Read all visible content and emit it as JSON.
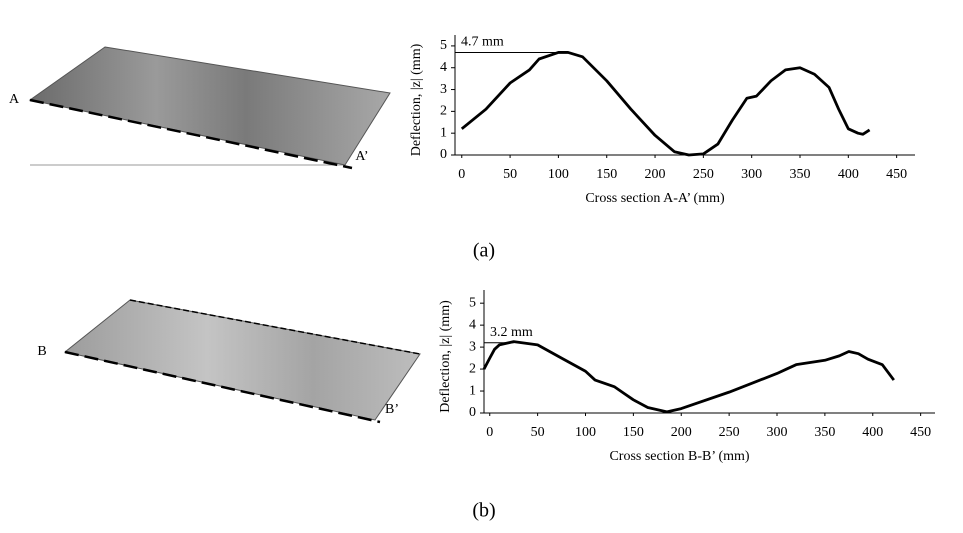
{
  "chart_data": [
    {
      "type": "line",
      "caption": "(a)",
      "plate_labels": [
        "A",
        "A’"
      ],
      "xlabel": "Cross section A-A’ (mm)",
      "ylabel": "Deflection, |z| (mm)",
      "x": [
        0,
        25,
        50,
        70,
        80,
        100,
        110,
        125,
        150,
        175,
        200,
        220,
        235,
        250,
        265,
        280,
        295,
        305,
        320,
        335,
        350,
        365,
        380,
        390,
        400,
        410,
        415,
        422
      ],
      "values": [
        1.2,
        2.1,
        3.3,
        3.9,
        4.4,
        4.7,
        4.7,
        4.5,
        3.4,
        2.1,
        0.9,
        0.15,
        0.0,
        0.05,
        0.5,
        1.6,
        2.6,
        2.7,
        3.4,
        3.9,
        4.0,
        3.7,
        3.1,
        2.1,
        1.2,
        1.0,
        0.95,
        1.15
      ],
      "color": "#000000",
      "annotation": {
        "text": "4.7 mm",
        "x": 105,
        "y": 4.7
      },
      "xlim": [
        -7,
        469
      ],
      "ylim": [
        0,
        5.5
      ],
      "xticks": [
        0,
        50,
        100,
        150,
        200,
        250,
        300,
        350,
        400,
        450
      ],
      "yticks": [
        0,
        1,
        2,
        3,
        4,
        5
      ]
    },
    {
      "type": "line",
      "caption": "(b)",
      "plate_labels": [
        "B",
        "B’"
      ],
      "xlabel": "Cross section B-B’ (mm)",
      "ylabel": "Deflection, |z| (mm)",
      "x": [
        -6,
        0,
        5,
        10,
        25,
        50,
        75,
        100,
        110,
        130,
        140,
        150,
        165,
        185,
        200,
        250,
        300,
        310,
        320,
        350,
        365,
        375,
        385,
        395,
        410,
        422
      ],
      "values": [
        2.0,
        2.5,
        2.9,
        3.1,
        3.25,
        3.1,
        2.5,
        1.9,
        1.5,
        1.2,
        0.9,
        0.6,
        0.25,
        0.05,
        0.2,
        0.95,
        1.8,
        2.0,
        2.2,
        2.4,
        2.6,
        2.8,
        2.7,
        2.45,
        2.2,
        1.5
      ],
      "color": "#000000",
      "annotation": {
        "text": "3.2 mm",
        "x": 25,
        "y": 3.2
      },
      "xlim": [
        -6,
        465
      ],
      "ylim": [
        0,
        5.6
      ],
      "xticks": [
        0,
        50,
        100,
        150,
        200,
        250,
        300,
        350,
        400,
        450
      ],
      "yticks": [
        0,
        1,
        2,
        3,
        4,
        5
      ]
    }
  ]
}
